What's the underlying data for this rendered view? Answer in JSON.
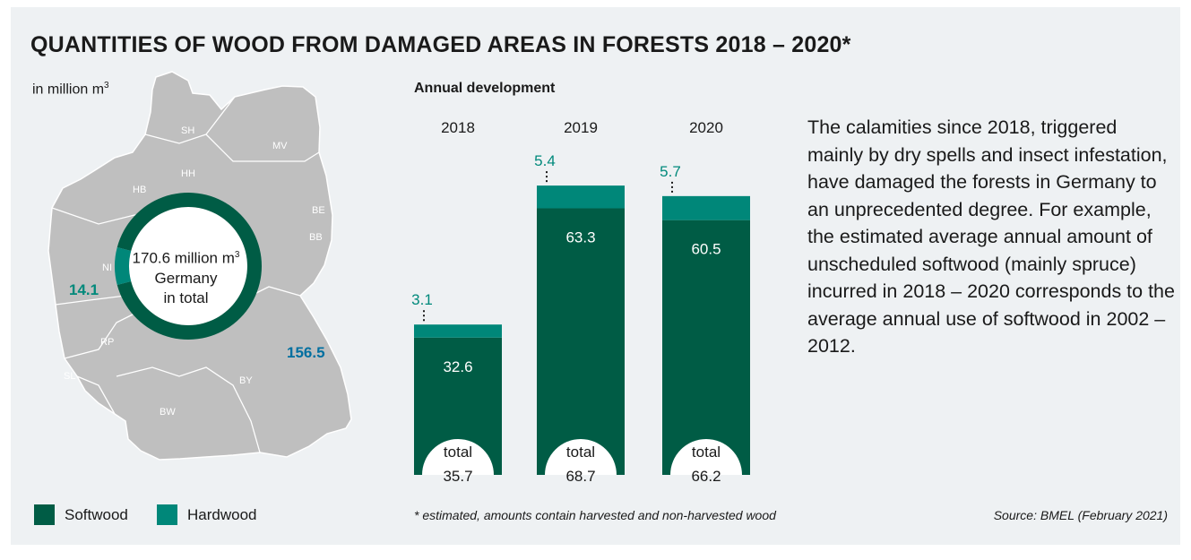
{
  "title": "QUANTITIES OF WOOD FROM DAMAGED AREAS IN FORESTS 2018 – 2020*",
  "unit_label": {
    "text": "in million m",
    "sup": "3"
  },
  "map": {
    "state_labels": [
      "SH",
      "MV",
      "HH",
      "HB",
      "BE",
      "BB",
      "NI",
      "RP",
      "SL",
      "BW",
      "BY"
    ],
    "center_line1": "170.6 million m",
    "center_line1_sup": "3",
    "center_line2": "Germany",
    "center_line3": "in total",
    "hardwood_value": "14.1",
    "softwood_value": "156.5"
  },
  "legend": {
    "softwood": "Softwood",
    "hardwood": "Hardwood"
  },
  "colors": {
    "softwood": "#005c45",
    "hardwood": "#008779",
    "map": "#bfbfbf",
    "label_blue": "#006fa0",
    "hardwood_label": "#00897b"
  },
  "annual_title": "Annual development",
  "chart_data": [
    {
      "type": "pie",
      "subtype": "donut",
      "categories": [
        "Softwood",
        "Hardwood"
      ],
      "values": [
        156.5,
        14.1
      ]
    },
    {
      "type": "bar",
      "stacked": true,
      "title": "Annual development",
      "categories": [
        "2018",
        "2019",
        "2020"
      ],
      "series": [
        {
          "name": "Softwood",
          "values": [
            32.6,
            63.3,
            60.5
          ]
        },
        {
          "name": "Hardwood",
          "values": [
            3.1,
            5.4,
            5.7
          ]
        }
      ],
      "total_label": "total",
      "totals": [
        "35.7",
        "68.7",
        "66.2"
      ],
      "softwood_labels": [
        "32.6",
        "63.3",
        "60.5"
      ],
      "hardwood_labels": [
        "3.1",
        "5.4",
        "5.7"
      ]
    }
  ],
  "description": "The calamities since 2018, triggered mainly by dry spells and insect infestation, have damaged the forests in Germany to an unprecedented degree. For example, the estimated average annual amount of unscheduled softwood (mainly spruce) incurred in 2018 – 2020 corresponds to the average annual use of softwood in 2002 – 2012.",
  "footnote": "* estimated, amounts contain harvested and non-harvested wood",
  "source": "Source: BMEL (February 2021)"
}
